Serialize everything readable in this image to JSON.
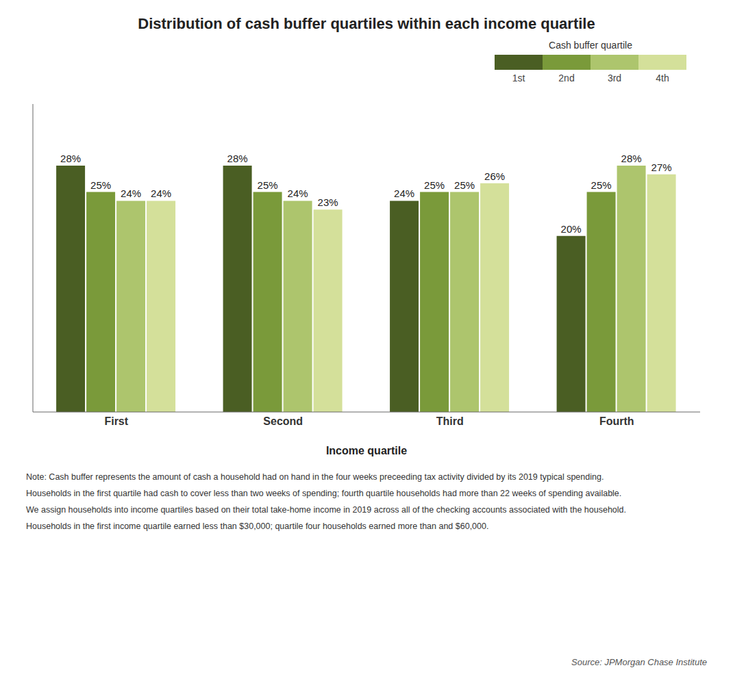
{
  "chart_data": {
    "type": "bar",
    "title": "Distribution of cash buffer quartiles within each income quartile",
    "xlabel": "Income quartile",
    "legend_title": "Cash buffer quartile",
    "categories": [
      "First",
      "Second",
      "Third",
      "Fourth"
    ],
    "series": [
      {
        "name": "1st",
        "color": "#4a5e23",
        "values": [
          28,
          28,
          24,
          20
        ],
        "value_labels": [
          "28%",
          "28%",
          "24%",
          "20%"
        ]
      },
      {
        "name": "2nd",
        "color": "#7a9a3a",
        "values": [
          25,
          25,
          25,
          25
        ],
        "value_labels": [
          "25%",
          "25%",
          "25%",
          "25%"
        ]
      },
      {
        "name": "3rd",
        "color": "#adc56d",
        "values": [
          24,
          24,
          25,
          28
        ],
        "value_labels": [
          "24%",
          "24%",
          "25%",
          "28%"
        ]
      },
      {
        "name": "4th",
        "color": "#d4e09a",
        "values": [
          24,
          23,
          26,
          27
        ],
        "value_labels": [
          "24%",
          "23%",
          "26%",
          "27%"
        ]
      }
    ],
    "ylim": [
      0,
      35
    ],
    "tick_labels": "x",
    "grid": false,
    "legend": "upper right",
    "data_labels": true,
    "annotations": [
      "Note: Cash buffer represents the amount of cash a household had on hand in the four weeks preceeding tax activity divided by its 2019 typical spending.",
      "Households in the first quartile had cash to cover less than two weeks of spending; fourth quartile households had more than 22 weeks of spending available.",
      "We assign households into income quartiles based on their total take-home income in 2019 across all of the checking accounts associated with the household.",
      "Households in the first income quartile earned less than $30,000; quartile four households earned more than and $60,000.",
      "Source: JPMorgan Chase Institute"
    ]
  }
}
